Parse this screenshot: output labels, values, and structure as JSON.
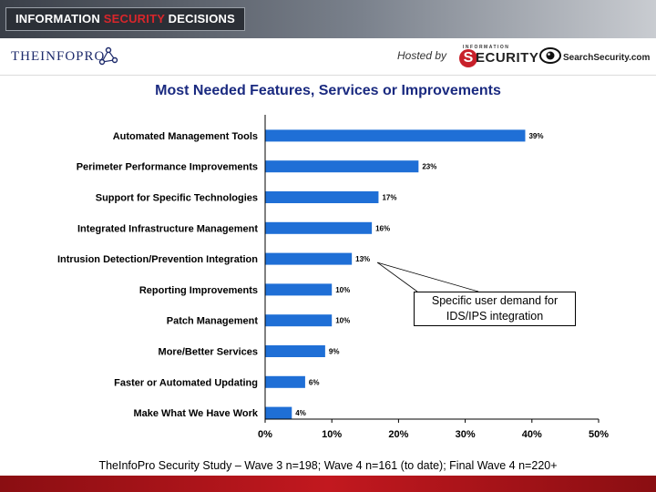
{
  "header": {
    "badge_part1": "INFORMATION ",
    "badge_accent": "SECURITY",
    "badge_part2": " DECISIONS",
    "infopro_logo": "THEINFOPRO",
    "hosted_by": "Hosted by",
    "security_logo_top": "INFORMATION",
    "security_logo_s": "S",
    "security_logo_word": "ECURITY",
    "searchsecurity_logo": "SearchSecurity.com"
  },
  "chart_data": {
    "type": "bar",
    "orientation": "horizontal",
    "title": "Most Needed Features, Services or Improvements",
    "categories": [
      "Automated Management Tools",
      "Perimeter Performance Improvements",
      "Support for Specific Technologies",
      "Integrated Infrastructure Management",
      "Intrusion Detection/Prevention Integration",
      "Reporting Improvements",
      "Patch Management",
      "More/Better Services",
      "Faster or Automated Updating",
      "Make What We Have Work"
    ],
    "values": [
      39,
      23,
      17,
      16,
      13,
      10,
      10,
      9,
      6,
      4
    ],
    "value_labels": [
      "39%",
      "23%",
      "17%",
      "16%",
      "13%",
      "10%",
      "10%",
      "9%",
      "6%",
      "4%"
    ],
    "x_ticks": [
      "0%",
      "10%",
      "20%",
      "30%",
      "40%",
      "50%"
    ],
    "xlim": [
      0,
      50
    ],
    "bar_color": "#1f6fd6",
    "grid": false,
    "annotation": {
      "line1": "Specific user demand for",
      "line2": "IDS/IPS integration",
      "points_to": "Intrusion Detection/Prevention Integration"
    }
  },
  "footer": {
    "source": "TheInfoPro Security Study – Wave 3 n=198; Wave 4 n=161 (to date); Final Wave 4 n=220+"
  }
}
